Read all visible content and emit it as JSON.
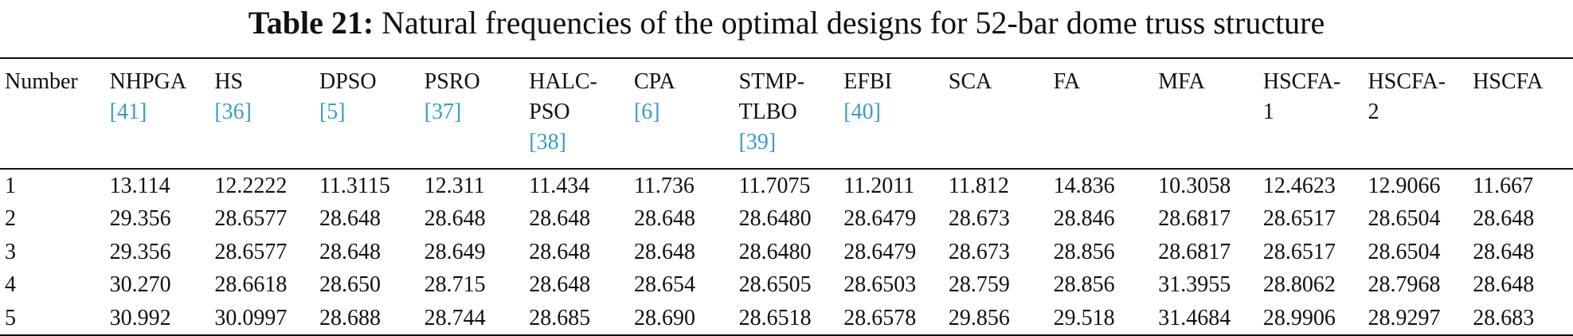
{
  "title": {
    "label": "Table 21:",
    "text": "Natural frequencies of the optimal designs for 52-bar dome truss structure"
  },
  "table": {
    "header": [
      {
        "label": "Number"
      },
      {
        "label": "NHPGA",
        "ref": "[41]"
      },
      {
        "label": "HS",
        "ref": "[36]"
      },
      {
        "label": "DPSO",
        "ref": "[5]"
      },
      {
        "label": "PSRO",
        "ref": "[37]"
      },
      {
        "label": "HALC-PSO",
        "ref": "[38]"
      },
      {
        "label": "CPA",
        "ref": "[6]"
      },
      {
        "label": "STMP-TLBO",
        "ref": "[39]"
      },
      {
        "label": "EFBI",
        "ref": "[40]"
      },
      {
        "label": "SCA"
      },
      {
        "label": "FA"
      },
      {
        "label": "MFA"
      },
      {
        "label": "HSCFA-1"
      },
      {
        "label": "HSCFA-2"
      },
      {
        "label": "HSCFA"
      }
    ],
    "rows": [
      [
        "1",
        "13.114",
        "12.2222",
        "11.3115",
        "12.311",
        "11.434",
        "11.736",
        "11.7075",
        "11.2011",
        "11.812",
        "14.836",
        "10.3058",
        "12.4623",
        "12.9066",
        "11.667"
      ],
      [
        "2",
        "29.356",
        "28.6577",
        "28.648",
        "28.648",
        "28.648",
        "28.648",
        "28.6480",
        "28.6479",
        "28.673",
        "28.846",
        "28.6817",
        "28.6517",
        "28.6504",
        "28.648"
      ],
      [
        "3",
        "29.356",
        "28.6577",
        "28.648",
        "28.649",
        "28.648",
        "28.648",
        "28.6480",
        "28.6479",
        "28.673",
        "28.856",
        "28.6817",
        "28.6517",
        "28.6504",
        "28.648"
      ],
      [
        "4",
        "30.270",
        "28.6618",
        "28.650",
        "28.715",
        "28.648",
        "28.654",
        "28.6505",
        "28.6503",
        "28.759",
        "28.856",
        "31.3955",
        "28.8062",
        "28.7968",
        "28.648"
      ],
      [
        "5",
        "30.992",
        "30.0997",
        "28.688",
        "28.744",
        "28.685",
        "28.690",
        "28.6518",
        "28.6578",
        "29.856",
        "29.518",
        "31.4684",
        "28.9906",
        "28.9297",
        "28.683"
      ]
    ]
  }
}
